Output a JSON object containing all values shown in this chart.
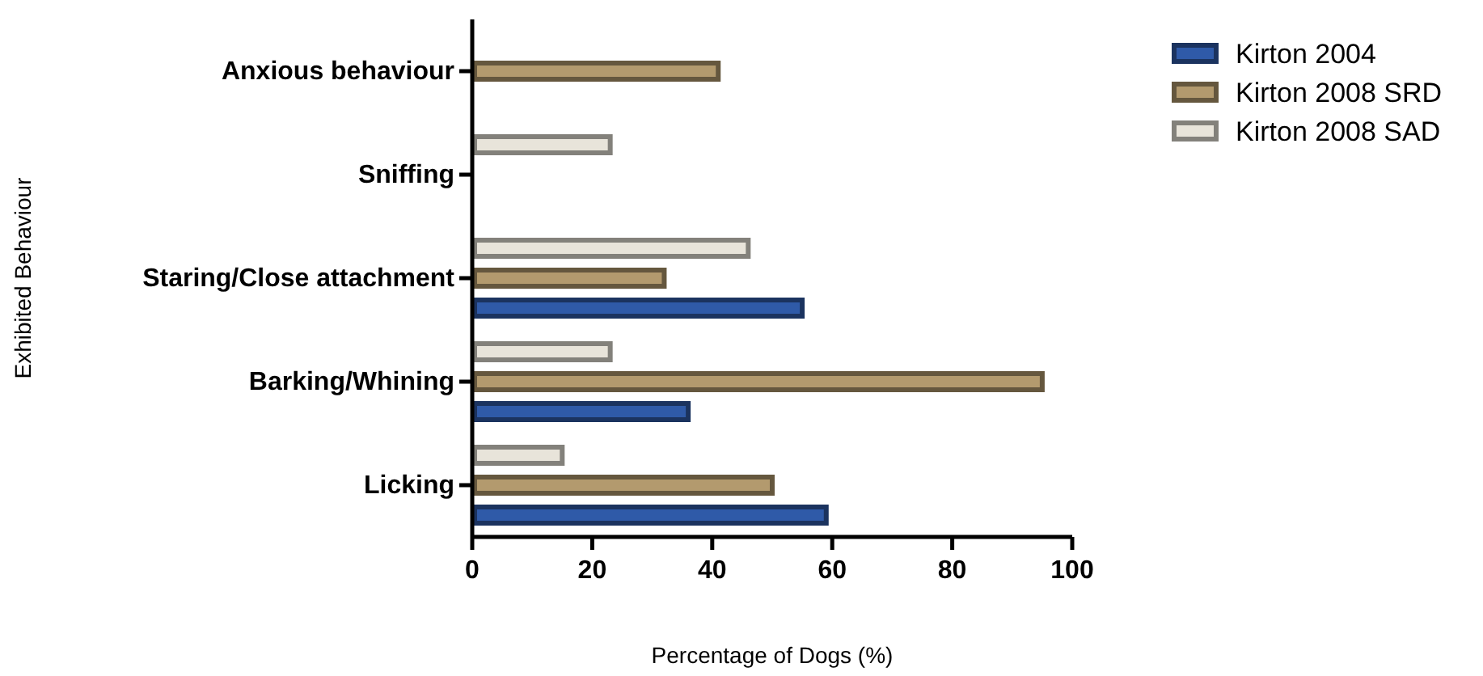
{
  "chart_data": {
    "type": "bar",
    "orientation": "horizontal",
    "categories": [
      "Anxious behaviour",
      "Sniffing",
      "Staring/Close attachment",
      "Barking/Whining",
      "Licking"
    ],
    "series": [
      {
        "name": "Kirton 2004",
        "color": "#2f5aa8",
        "values": [
          null,
          null,
          55,
          36,
          59
        ]
      },
      {
        "name": "Kirton 2008 SRD",
        "color": "#b39a6e",
        "values": [
          41,
          null,
          32,
          95,
          50
        ]
      },
      {
        "name": "Kirton 2008 SAD",
        "color": "#e8e4da",
        "values": [
          null,
          23,
          46,
          23,
          15
        ]
      }
    ],
    "xlim": [
      0,
      100
    ],
    "xticks": [
      0,
      20,
      40,
      60,
      80,
      100
    ],
    "xlabel": "Percentage of Dogs (%)",
    "ylabel": "Exhibited Behaviour",
    "legend": "top right",
    "grid": false
  }
}
